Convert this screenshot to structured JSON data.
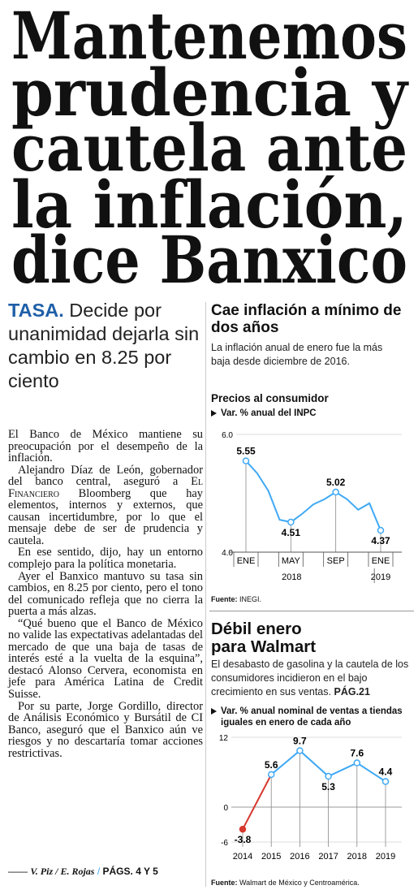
{
  "headline": {
    "lines": [
      "Mantenemos",
      "prudencia y",
      "cautela ante",
      "la inflación,",
      "dice Banxico"
    ]
  },
  "deck": {
    "label": "TASA.",
    "text": "Decide por unanimidad dejarla sin cambio en 8.25 por ciento"
  },
  "article": {
    "paragraphs": [
      [
        "El Banco de México mantiene su preocupación por el desempeño de la inflación."
      ],
      [
        "Alejandro Díaz de León, gobernador del banco central, aseguró a",
        "El Financiero",
        "Bloomberg que hay elementos, internos y externos, que causan incertidumbre, por lo que el mensaje debe de ser de prudencia y cautela."
      ],
      [
        "En ese sentido, dijo, hay un entorno complejo para la política monetaria."
      ],
      [
        "Ayer el Banxico mantuvo su tasa sin cambios, en 8.25 por ciento, pero el tono del comunicado refleja que no cierra la puerta a más alzas."
      ],
      [
        "“Qué bueno que el Banco de México no valide las expectativas adelantadas del mercado de que una baja de tasas de interés esté a la vuelta de la esquina”, destacó Alonso Cervera, economista en jefe para América Latina de Credit Suisse."
      ],
      [
        "Por su parte, Jorge Gordillo, director de Análisis Económico y Bursátil de CI Banco, aseguró que el Banxico aún ve riesgos y no descartaría tomar acciones restrictivas."
      ]
    ],
    "byline": "V. Piz / E. Rojas",
    "pages": "PÁGS. 4 Y 5"
  },
  "chart_data": [
    {
      "type": "line",
      "title": "Cae inflación a mínimo de dos años",
      "subtitle": "La inflación anual de enero fue la más baja desde diciembre de 2016.",
      "heading": "Precios al consumidor",
      "categories": [
        "ENE",
        null,
        null,
        null,
        "MAY",
        null,
        null,
        null,
        "SEP",
        null,
        null,
        null,
        "ENE"
      ],
      "x_groups": [
        "2018",
        "2019"
      ],
      "series": [
        {
          "name": "Var. % anual del INPC",
          "color": "#3fa9f5",
          "values": [
            5.55,
            5.34,
            5.04,
            4.55,
            4.51,
            4.65,
            4.81,
            4.9,
            5.02,
            4.9,
            4.72,
            4.83,
            4.37
          ]
        }
      ],
      "ylim": [
        4,
        6
      ],
      "yticks": [
        {
          "value": 4,
          "label": "4.0"
        },
        {
          "value": 6,
          "label": "6.0"
        }
      ],
      "source_label": "Fuente:",
      "source": "INEGI."
    },
    {
      "type": "line",
      "title": "Débil enero para Walmart",
      "subtitle": "El desabasto de gasolina y la cautela de los consumidores incidieron en el bajo crecimiento en sus ventas.",
      "subtitle_ref": "PÁG.21",
      "categories": [
        "2014",
        "2015",
        "2016",
        "2017",
        "2018",
        "2019"
      ],
      "series": [
        {
          "name": "Var. % anual nominal de ventas a tiendas iguales en enero de cada año",
          "color": "#3fa9f5",
          "values": [
            -3.8,
            5.6,
            9.7,
            5.3,
            7.6,
            4.4
          ]
        }
      ],
      "negative_color": "#d7392f",
      "ylim": [
        -6,
        12
      ],
      "yticks": [
        -6,
        0,
        12
      ],
      "source_label": "Fuente:",
      "source": "Walmart de México y Centroamérica."
    }
  ]
}
